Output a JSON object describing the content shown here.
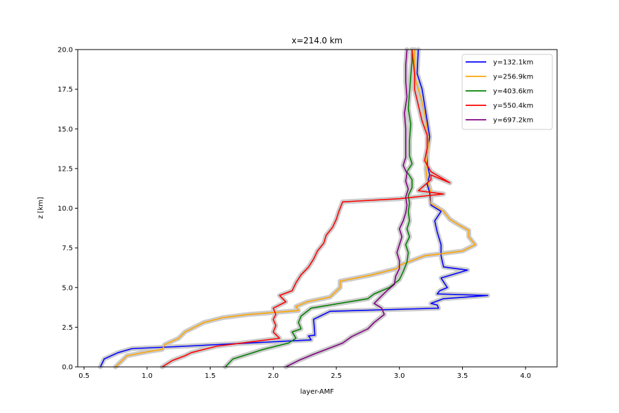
{
  "chart_data": {
    "type": "line",
    "title": "x=214.0 km",
    "xlabel": "layer-AMF",
    "ylabel": "z [km]",
    "xlim": [
      0.45,
      4.25
    ],
    "ylim": [
      0,
      20
    ],
    "xticks": [
      "0.5",
      "1.0",
      "1.5",
      "2.0",
      "2.5",
      "3.0",
      "3.5",
      "4.0"
    ],
    "yticks": [
      "0.0",
      "2.5",
      "5.0",
      "7.5",
      "10.0",
      "12.5",
      "15.0",
      "17.5",
      "20.0"
    ],
    "legend_position": "top-right",
    "grid": false,
    "uncertainty_band_color": "#cccccc",
    "series": [
      {
        "name": "y=132.1km",
        "color": "#0000ff",
        "points": [
          [
            0.63,
            0.0
          ],
          [
            0.66,
            0.5
          ],
          [
            0.77,
            0.9
          ],
          [
            0.88,
            1.15
          ],
          [
            1.3,
            1.3
          ],
          [
            2.3,
            1.7
          ],
          [
            2.28,
            1.95
          ],
          [
            2.33,
            2.0
          ],
          [
            2.32,
            3.0
          ],
          [
            2.45,
            3.5
          ],
          [
            3.31,
            3.7
          ],
          [
            3.3,
            3.9
          ],
          [
            3.25,
            4.0
          ],
          [
            3.35,
            4.3
          ],
          [
            3.7,
            4.5
          ],
          [
            3.3,
            4.6
          ],
          [
            3.32,
            4.8
          ],
          [
            3.38,
            5.0
          ],
          [
            3.33,
            5.6
          ],
          [
            3.54,
            6.1
          ],
          [
            3.35,
            6.3
          ],
          [
            3.33,
            7.0
          ],
          [
            3.33,
            7.7
          ],
          [
            3.3,
            8.5
          ],
          [
            3.28,
            9.2
          ],
          [
            3.33,
            9.8
          ],
          [
            3.25,
            10.2
          ],
          [
            3.24,
            11.0
          ],
          [
            3.22,
            11.5
          ],
          [
            3.24,
            12.1
          ],
          [
            3.22,
            12.8
          ],
          [
            3.22,
            13.5
          ],
          [
            3.24,
            14.5
          ],
          [
            3.22,
            15.5
          ],
          [
            3.2,
            16.5
          ],
          [
            3.18,
            17.5
          ],
          [
            3.14,
            18.5
          ],
          [
            3.15,
            20.0
          ]
        ]
      },
      {
        "name": "y=256.9km",
        "color": "#ffa500",
        "points": [
          [
            0.75,
            0.0
          ],
          [
            0.84,
            0.7
          ],
          [
            1.0,
            0.95
          ],
          [
            1.12,
            1.1
          ],
          [
            1.14,
            1.4
          ],
          [
            1.25,
            1.8
          ],
          [
            1.3,
            2.2
          ],
          [
            1.45,
            2.8
          ],
          [
            1.6,
            3.1
          ],
          [
            1.8,
            3.3
          ],
          [
            2.2,
            3.55
          ],
          [
            2.18,
            3.8
          ],
          [
            2.27,
            4.1
          ],
          [
            2.45,
            4.4
          ],
          [
            2.53,
            5.0
          ],
          [
            2.53,
            5.4
          ],
          [
            2.78,
            5.8
          ],
          [
            2.98,
            6.2
          ],
          [
            3.0,
            6.4
          ],
          [
            3.2,
            7.0
          ],
          [
            3.5,
            7.3
          ],
          [
            3.6,
            7.7
          ],
          [
            3.55,
            8.2
          ],
          [
            3.55,
            8.6
          ],
          [
            3.46,
            9.0
          ],
          [
            3.4,
            9.3
          ],
          [
            3.35,
            9.8
          ],
          [
            3.25,
            10.3
          ],
          [
            3.25,
            11.0
          ],
          [
            3.22,
            11.8
          ],
          [
            3.21,
            12.5
          ],
          [
            3.22,
            13.3
          ],
          [
            3.23,
            14.1
          ],
          [
            3.22,
            15.0
          ],
          [
            3.2,
            16.0
          ],
          [
            3.17,
            17.0
          ],
          [
            3.13,
            18.0
          ],
          [
            3.12,
            19.0
          ],
          [
            3.12,
            20.0
          ]
        ]
      },
      {
        "name": "y=403.6km",
        "color": "#008000",
        "points": [
          [
            1.62,
            0.0
          ],
          [
            1.68,
            0.5
          ],
          [
            1.8,
            0.8
          ],
          [
            1.92,
            1.1
          ],
          [
            2.12,
            1.5
          ],
          [
            2.18,
            1.8
          ],
          [
            2.15,
            2.2
          ],
          [
            2.22,
            2.4
          ],
          [
            2.2,
            2.8
          ],
          [
            2.22,
            3.2
          ],
          [
            2.3,
            3.7
          ],
          [
            2.6,
            4.1
          ],
          [
            2.75,
            4.3
          ],
          [
            2.8,
            4.6
          ],
          [
            2.92,
            5.0
          ],
          [
            3.0,
            5.5
          ],
          [
            3.03,
            6.0
          ],
          [
            3.06,
            6.6
          ],
          [
            3.07,
            7.2
          ],
          [
            3.05,
            7.7
          ],
          [
            3.08,
            8.2
          ],
          [
            3.06,
            8.7
          ],
          [
            3.08,
            9.2
          ],
          [
            3.07,
            9.8
          ],
          [
            3.08,
            10.3
          ],
          [
            3.07,
            10.8
          ],
          [
            3.1,
            11.3
          ],
          [
            3.1,
            11.8
          ],
          [
            3.06,
            12.3
          ],
          [
            3.1,
            12.8
          ],
          [
            3.08,
            13.3
          ],
          [
            3.08,
            14.3
          ],
          [
            3.09,
            15.3
          ],
          [
            3.07,
            16.3
          ],
          [
            3.08,
            17.3
          ],
          [
            3.09,
            18.3
          ],
          [
            3.1,
            19.3
          ],
          [
            3.1,
            20.0
          ]
        ]
      },
      {
        "name": "y=550.4km",
        "color": "#ff0000",
        "points": [
          [
            1.12,
            0.0
          ],
          [
            1.2,
            0.4
          ],
          [
            1.3,
            0.7
          ],
          [
            1.35,
            0.9
          ],
          [
            1.45,
            1.1
          ],
          [
            1.55,
            1.3
          ],
          [
            1.85,
            1.6
          ],
          [
            2.05,
            1.8
          ],
          [
            2.0,
            2.2
          ],
          [
            2.02,
            2.6
          ],
          [
            2.0,
            3.0
          ],
          [
            2.02,
            3.3
          ],
          [
            2.0,
            3.7
          ],
          [
            2.1,
            4.1
          ],
          [
            2.05,
            4.5
          ],
          [
            2.15,
            4.8
          ],
          [
            2.18,
            5.3
          ],
          [
            2.22,
            5.8
          ],
          [
            2.28,
            6.3
          ],
          [
            2.32,
            6.8
          ],
          [
            2.35,
            7.3
          ],
          [
            2.4,
            7.8
          ],
          [
            2.42,
            8.3
          ],
          [
            2.47,
            8.8
          ],
          [
            2.5,
            9.3
          ],
          [
            2.52,
            9.8
          ],
          [
            2.55,
            10.4
          ],
          [
            3.0,
            10.6
          ],
          [
            3.35,
            10.9
          ],
          [
            3.15,
            11.1
          ],
          [
            3.25,
            11.8
          ],
          [
            3.25,
            12.1
          ],
          [
            3.4,
            11.6
          ],
          [
            3.25,
            12.3
          ],
          [
            3.2,
            13.0
          ],
          [
            3.22,
            13.8
          ],
          [
            3.22,
            14.6
          ],
          [
            3.18,
            15.5
          ],
          [
            3.15,
            16.5
          ],
          [
            3.12,
            17.5
          ],
          [
            3.12,
            18.5
          ],
          [
            3.1,
            20.0
          ]
        ]
      },
      {
        "name": "y=697.2km",
        "color": "#800080",
        "points": [
          [
            2.1,
            0.0
          ],
          [
            2.2,
            0.4
          ],
          [
            2.32,
            0.8
          ],
          [
            2.42,
            1.1
          ],
          [
            2.55,
            1.5
          ],
          [
            2.62,
            1.9
          ],
          [
            2.75,
            2.4
          ],
          [
            2.8,
            2.8
          ],
          [
            2.88,
            3.3
          ],
          [
            2.86,
            3.7
          ],
          [
            2.8,
            4.0
          ],
          [
            2.85,
            4.4
          ],
          [
            2.9,
            4.8
          ],
          [
            2.96,
            5.2
          ],
          [
            2.97,
            5.7
          ],
          [
            3.0,
            6.2
          ],
          [
            3.0,
            6.7
          ],
          [
            2.98,
            7.2
          ],
          [
            3.0,
            7.7
          ],
          [
            3.02,
            8.2
          ],
          [
            3.0,
            8.7
          ],
          [
            3.03,
            9.2
          ],
          [
            3.05,
            9.7
          ],
          [
            3.06,
            10.2
          ],
          [
            3.05,
            10.7
          ],
          [
            3.07,
            11.2
          ],
          [
            3.05,
            11.7
          ],
          [
            3.06,
            12.2
          ],
          [
            3.03,
            12.7
          ],
          [
            3.05,
            13.2
          ],
          [
            3.05,
            14.0
          ],
          [
            3.05,
            15.0
          ],
          [
            3.04,
            16.0
          ],
          [
            3.06,
            17.0
          ],
          [
            3.05,
            18.0
          ],
          [
            3.05,
            19.0
          ],
          [
            3.06,
            20.0
          ]
        ]
      }
    ]
  }
}
